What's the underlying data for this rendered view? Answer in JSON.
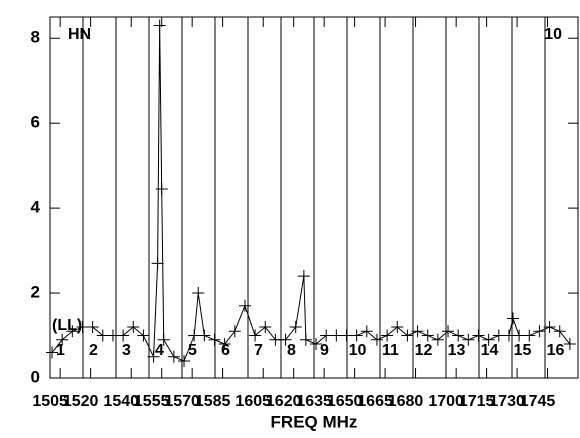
{
  "chart_data": {
    "type": "line",
    "x_label": "FREQ MHz",
    "corner_left": "HN",
    "corner_right": "10",
    "polarization": "(LL)",
    "channel_labels": [
      "1",
      "2",
      "3",
      "4",
      "5",
      "6",
      "7",
      "8",
      "9",
      "10",
      "11",
      "12",
      "13",
      "14",
      "15",
      "16"
    ],
    "x": [
      1501,
      1506,
      1511,
      1516,
      1521,
      1526,
      1531,
      1536,
      1541,
      1546,
      1551,
      1553,
      1554,
      1555,
      1556,
      1561,
      1566,
      1571,
      1573,
      1576,
      1581,
      1586,
      1591,
      1596,
      1601,
      1606,
      1611,
      1616,
      1621,
      1625,
      1626,
      1631,
      1636,
      1641,
      1646,
      1651,
      1656,
      1661,
      1666,
      1671,
      1676,
      1681,
      1686,
      1691,
      1696,
      1701,
      1706,
      1711,
      1716,
      1721,
      1726,
      1728,
      1731,
      1736,
      1741,
      1746,
      1751,
      1756
    ],
    "series": [
      {
        "color": "#000000",
        "values": [
          0.6,
          0.9,
          1.1,
          1.2,
          1.2,
          1.0,
          1.0,
          1.0,
          1.2,
          1.0,
          0.5,
          2.7,
          8.3,
          4.45,
          0.9,
          0.5,
          0.4,
          1.0,
          2.0,
          1.0,
          0.9,
          0.8,
          1.1,
          1.7,
          1.0,
          1.2,
          0.9,
          0.9,
          1.2,
          2.4,
          0.9,
          0.8,
          1.0,
          1.0,
          1.0,
          1.0,
          1.1,
          0.9,
          1.0,
          1.2,
          1.0,
          1.1,
          1.0,
          0.9,
          1.1,
          1.0,
          0.9,
          1.0,
          0.9,
          1.0,
          1.0,
          1.4,
          1.0,
          1.0,
          1.1,
          1.2,
          1.1,
          0.8
        ]
      }
    ],
    "xlim": [
      1500,
      1760
    ],
    "xticks": [
      1505,
      1520,
      1540,
      1555,
      1570,
      1585,
      1605,
      1620,
      1635,
      1650,
      1665,
      1680,
      1700,
      1715,
      1730,
      1745
    ],
    "ylim": [
      0,
      8.5
    ],
    "yticks": [
      0,
      2,
      4,
      6,
      8
    ]
  }
}
